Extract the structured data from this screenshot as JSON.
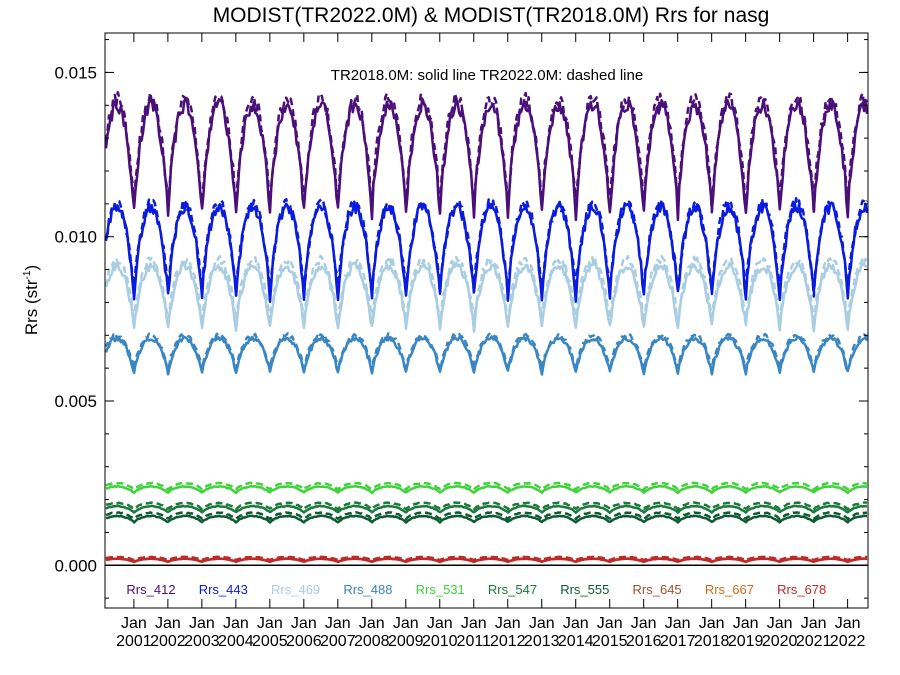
{
  "chart_data": {
    "type": "line",
    "title": "MODIST(TR2022.0M) & MODIST(TR2018.0M)  Rrs for nasg",
    "subtitle": "TR2018.0M: solid line   TR2022.0M: dashed line",
    "ylabel_base": "Rrs (str",
    "ylabel_exp": "-1",
    "ylabel_close": ")",
    "xlabel": "",
    "ylim": [
      -0.0013,
      0.0162
    ],
    "xlim": [
      2000.15,
      2022.6
    ],
    "yticks": [
      {
        "value": 0.0,
        "label": "0.000"
      },
      {
        "value": 0.005,
        "label": "0.005"
      },
      {
        "value": 0.01,
        "label": "0.010"
      },
      {
        "value": 0.015,
        "label": "0.015"
      }
    ],
    "xtick_month": "Jan",
    "xticks": [
      {
        "year": 2001,
        "label": "2001"
      },
      {
        "year": 2002,
        "label": "2002"
      },
      {
        "year": 2003,
        "label": "2003"
      },
      {
        "year": 2004,
        "label": "2004"
      },
      {
        "year": 2005,
        "label": "2005"
      },
      {
        "year": 2006,
        "label": "2006"
      },
      {
        "year": 2007,
        "label": "2007"
      },
      {
        "year": 2008,
        "label": "2008"
      },
      {
        "year": 2009,
        "label": "2009"
      },
      {
        "year": 2010,
        "label": "2010"
      },
      {
        "year": 2011,
        "label": "2011"
      },
      {
        "year": 2012,
        "label": "2012"
      },
      {
        "year": 2013,
        "label": "2013"
      },
      {
        "year": 2014,
        "label": "2014"
      },
      {
        "year": 2015,
        "label": "2015"
      },
      {
        "year": 2016,
        "label": "2016"
      },
      {
        "year": 2017,
        "label": "2017"
      },
      {
        "year": 2018,
        "label": "2018"
      },
      {
        "year": 2019,
        "label": "2019"
      },
      {
        "year": 2020,
        "label": "2020"
      },
      {
        "year": 2021,
        "label": "2021"
      },
      {
        "year": 2022,
        "label": "2022"
      }
    ],
    "grid": false,
    "legend_placement": "bottom-inside",
    "series": [
      {
        "name": "Rrs_412",
        "color": "#4b0f7a",
        "summer_peak": 0.014,
        "winter_trough": 0.0105,
        "dashed_offset": 0.0002
      },
      {
        "name": "Rrs_443",
        "color": "#0a1be0",
        "summer_peak": 0.0109,
        "winter_trough": 0.008,
        "dashed_offset": 0.0001
      },
      {
        "name": "Rrs_469",
        "color": "#a9cde3",
        "summer_peak": 0.0091,
        "winter_trough": 0.0071,
        "dashed_offset": 0.0002
      },
      {
        "name": "Rrs_488",
        "color": "#3a86c2",
        "summer_peak": 0.0069,
        "winter_trough": 0.0058,
        "dashed_offset": 0.0001
      },
      {
        "name": "Rrs_531",
        "color": "#3fd23a",
        "summer_peak": 0.0024,
        "winter_trough": 0.0022,
        "dashed_offset": 0.0001
      },
      {
        "name": "Rrs_547",
        "color": "#1a7a3a",
        "summer_peak": 0.0018,
        "winter_trough": 0.0016,
        "dashed_offset": 0.0001
      },
      {
        "name": "Rrs_555",
        "color": "#0d5a30",
        "summer_peak": 0.0015,
        "winter_trough": 0.0013,
        "dashed_offset": 0.0001
      },
      {
        "name": "Rrs_645",
        "color": "#a0522d",
        "summer_peak": 0.0002,
        "winter_trough": 0.0001,
        "dashed_offset": 5e-05
      },
      {
        "name": "Rrs_667",
        "color": "#d2691e",
        "summer_peak": 0.0002,
        "winter_trough": 0.0001,
        "dashed_offset": 5e-05
      },
      {
        "name": "Rrs_678",
        "color": "#c0282a",
        "summer_peak": 0.0002,
        "winter_trough": 0.0001,
        "dashed_offset": 5e-05
      }
    ]
  }
}
